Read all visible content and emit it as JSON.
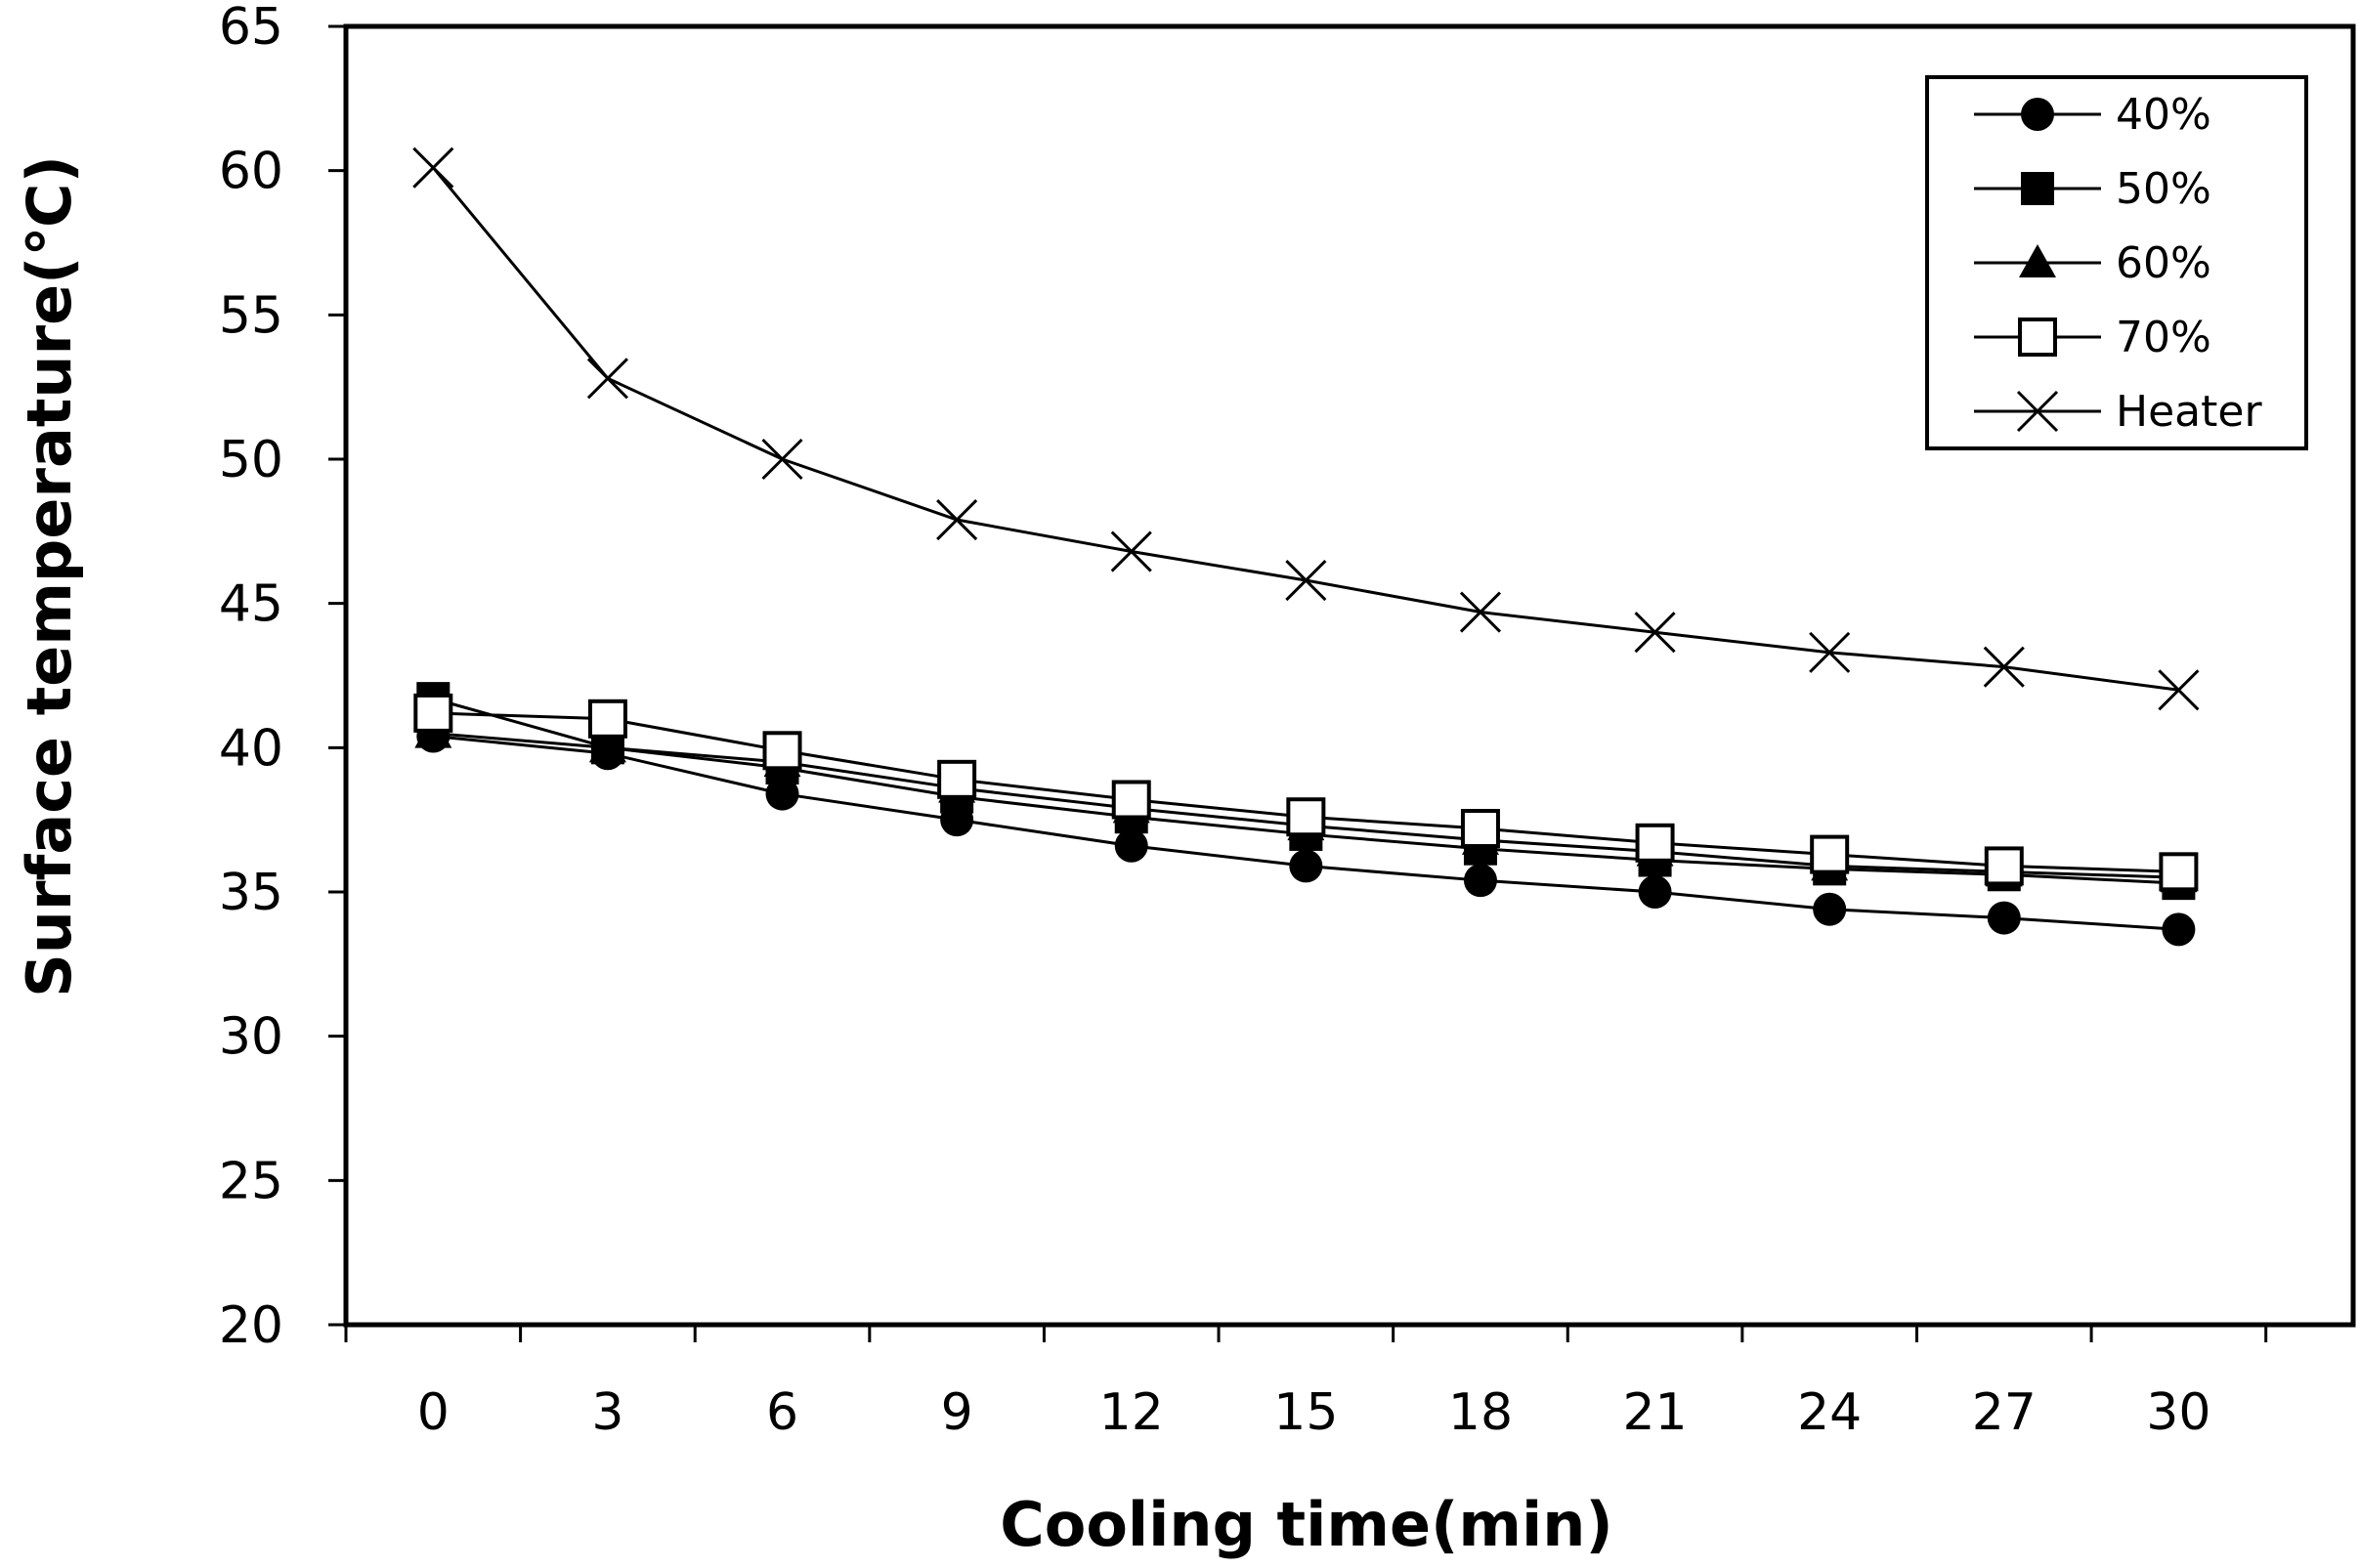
{
  "chart_data": {
    "type": "line",
    "xlabel": "Cooling time(min)",
    "ylabel": "Surface temperature(℃)",
    "categories": [
      "0",
      "3",
      "6",
      "9",
      "12",
      "15",
      "18",
      "21",
      "24",
      "27",
      "30"
    ],
    "ylim": [
      20,
      65
    ],
    "yticks": [
      20,
      25,
      30,
      35,
      40,
      45,
      50,
      55,
      60,
      65
    ],
    "legend_position": "top-right",
    "grid": false,
    "series": [
      {
        "name": "40%",
        "marker": "circle",
        "values": [
          40.4,
          39.8,
          38.4,
          37.5,
          36.6,
          35.9,
          35.4,
          35.0,
          34.4,
          34.1,
          33.7
        ]
      },
      {
        "name": "50%",
        "marker": "square",
        "values": [
          41.7,
          40.0,
          39.3,
          38.3,
          37.6,
          37.0,
          36.5,
          36.1,
          35.8,
          35.6,
          35.3
        ]
      },
      {
        "name": "60%",
        "marker": "triangle",
        "values": [
          40.5,
          40.0,
          39.5,
          38.6,
          37.9,
          37.3,
          36.8,
          36.4,
          35.9,
          35.7,
          35.5
        ]
      },
      {
        "name": "70%",
        "marker": "open-square",
        "values": [
          41.2,
          41.0,
          39.9,
          38.9,
          38.2,
          37.6,
          37.2,
          36.7,
          36.3,
          35.9,
          35.7
        ]
      },
      {
        "name": "Heater",
        "marker": "x",
        "values": [
          60.1,
          52.8,
          50.0,
          47.9,
          46.8,
          45.8,
          44.7,
          44.0,
          43.3,
          42.8,
          42.0
        ]
      }
    ]
  }
}
